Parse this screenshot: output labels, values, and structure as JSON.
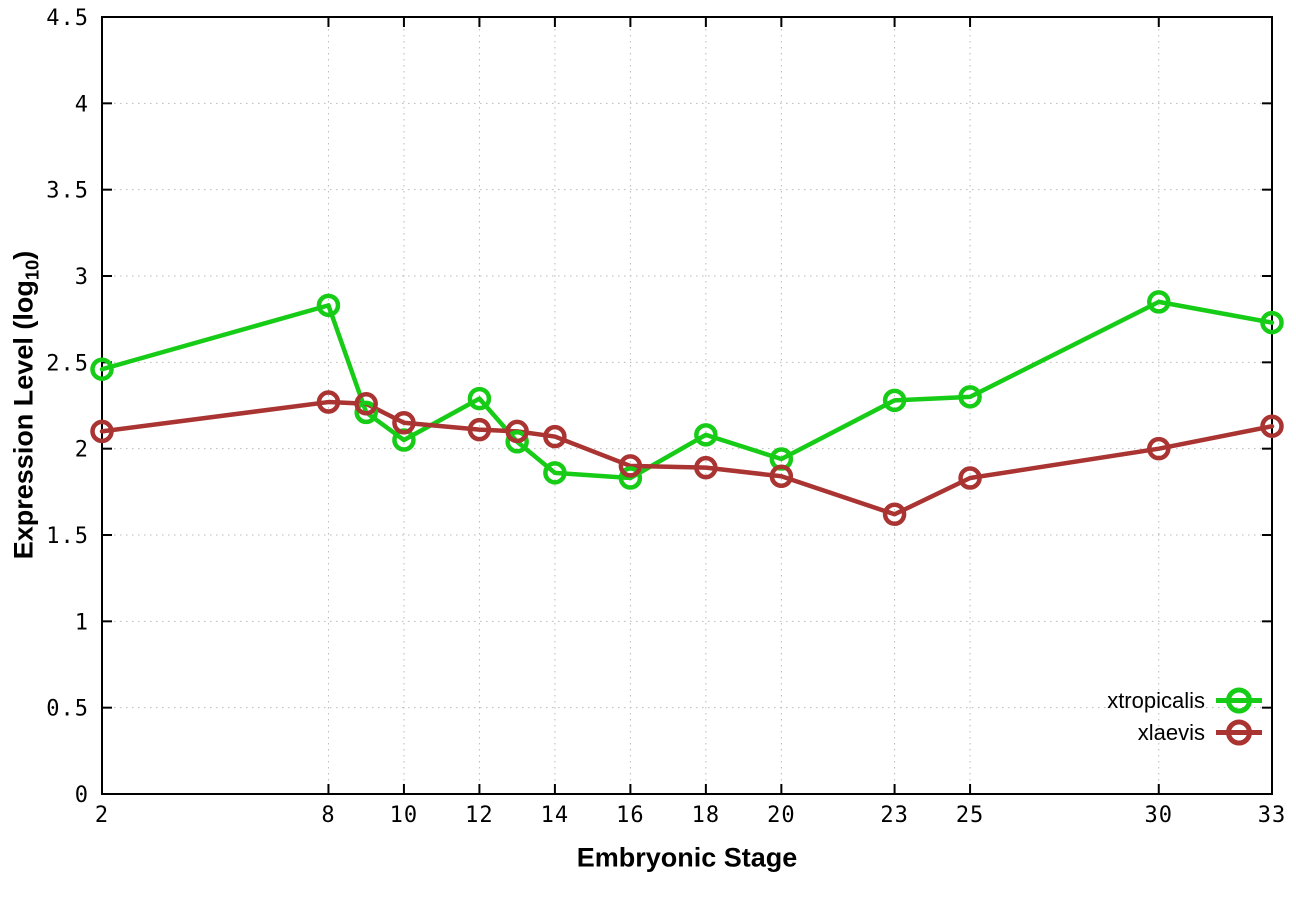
{
  "chart_data": {
    "type": "line",
    "title": "",
    "xlabel": "Embryonic Stage",
    "ylabel": "Expression Level (log10)",
    "ylabel_parts": {
      "pre": "Expression Level (log",
      "sub": "10",
      "post": ")"
    },
    "xlim": [
      2,
      33
    ],
    "ylim": [
      0,
      4.5
    ],
    "x_tick_values": [
      2,
      8,
      10,
      12,
      14,
      16,
      18,
      20,
      23,
      25,
      30,
      33
    ],
    "x_tick_labels": [
      "2",
      "8",
      "10",
      "12",
      "14",
      "16",
      "18",
      "20",
      "23",
      "25",
      "30",
      "33"
    ],
    "y_tick_values": [
      0,
      0.5,
      1,
      1.5,
      2,
      2.5,
      3,
      3.5,
      4,
      4.5
    ],
    "y_tick_labels": [
      "0",
      "0.5",
      "1",
      "1.5",
      "2",
      "2.5",
      "3",
      "3.5",
      "4",
      "4.5"
    ],
    "grid": true,
    "legend_position": "inside-bottom-right",
    "x": [
      2,
      8,
      9,
      10,
      12,
      13,
      14,
      16,
      18,
      20,
      23,
      25,
      30,
      33
    ],
    "series": [
      {
        "name": "xtropicalis",
        "color": "#16cc16",
        "marker": "open-circle",
        "values": [
          2.46,
          2.83,
          2.21,
          2.05,
          2.29,
          2.04,
          1.86,
          1.83,
          2.08,
          1.94,
          2.28,
          2.3,
          2.85,
          2.73
        ]
      },
      {
        "name": "xlaevis",
        "color": "#a93432",
        "marker": "open-circle",
        "values": [
          2.1,
          2.27,
          2.26,
          2.15,
          2.11,
          2.1,
          2.07,
          1.9,
          1.89,
          1.84,
          1.62,
          1.83,
          2.0,
          2.13
        ]
      }
    ],
    "colors": {
      "grid": "#b9b9b9",
      "axis": "#000000",
      "background": "#ffffff"
    }
  }
}
